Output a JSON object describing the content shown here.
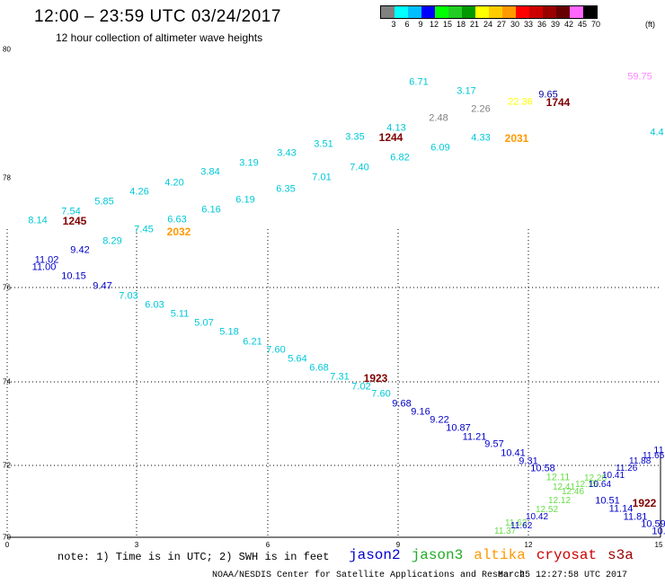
{
  "header": {
    "title": "12:00 – 23:59 UTC 03/24/2017",
    "subtitle": "12 hour collection of altimeter wave heights"
  },
  "colorbar": {
    "unit": "(ft)",
    "labels": [
      "3",
      "6",
      "9",
      "12",
      "15",
      "18",
      "21",
      "24",
      "27",
      "30",
      "33",
      "36",
      "39",
      "42",
      "45",
      "70"
    ],
    "colors": [
      "#808080",
      "#00ffff",
      "#00bfff",
      "#0000ff",
      "#00ff00",
      "#22cc22",
      "#009900",
      "#ffff00",
      "#ffcc00",
      "#ff9900",
      "#ff0000",
      "#cc0000",
      "#990000",
      "#660000",
      "#ff66ff",
      "#000000"
    ]
  },
  "axes": {
    "y_ticks": [
      "80",
      "78",
      "76",
      "74",
      "72",
      "70"
    ],
    "x_ticks": [
      "0",
      "3",
      "6",
      "9",
      "12",
      "15"
    ]
  },
  "footer": {
    "note": "note:  1) Time is in UTC;  2) SWH is in feet",
    "satellites": [
      {
        "name": "jason2",
        "color": "#0000cc"
      },
      {
        "name": "jason3",
        "color": "#22aa22"
      },
      {
        "name": "altika",
        "color": "#ff9900"
      },
      {
        "name": "cryosat",
        "color": "#cc0000"
      },
      {
        "name": "s3a",
        "color": "#990000"
      }
    ],
    "credit": "NOAA/NESDIS Center for Satellite Applications and Research",
    "timestamp": "Mar 25 12:27:58 UTC 2017"
  },
  "pass_labels": [
    {
      "text": "1245",
      "color": "#800000"
    },
    {
      "text": "2032",
      "color": "#ff9900"
    },
    {
      "text": "1244",
      "color": "#800000"
    },
    {
      "text": "2031",
      "color": "#ff9900"
    },
    {
      "text": "1744",
      "color": "#800000"
    },
    {
      "text": "1923",
      "color": "#800000"
    },
    {
      "text": "1922",
      "color": "#800000"
    }
  ],
  "wave_labels": [
    {
      "text": "6.71",
      "color": "#00c8d8"
    },
    {
      "text": "3.17",
      "color": "#00c8d8"
    },
    {
      "text": "9.65",
      "color": "#0000a0"
    },
    {
      "text": "59.75",
      "color": "#ff88ff"
    },
    {
      "text": "2.48",
      "color": "#808080"
    },
    {
      "text": "2.26",
      "color": "#808080"
    },
    {
      "text": "22.36",
      "color": "#ffff00"
    },
    {
      "text": "4.13",
      "color": "#00c8d8"
    },
    {
      "text": "3.35",
      "color": "#00c8d8"
    },
    {
      "text": "3.51",
      "color": "#00c8d8"
    },
    {
      "text": "6.09",
      "color": "#00c8d8"
    },
    {
      "text": "4.33",
      "color": "#00c8d8"
    },
    {
      "text": "4.4",
      "color": "#00c8d8"
    },
    {
      "text": "3.43",
      "color": "#00c8d8"
    },
    {
      "text": "6.82",
      "color": "#00c8d8"
    },
    {
      "text": "7.40",
      "color": "#00c8d8"
    },
    {
      "text": "3.19",
      "color": "#00c8d8"
    },
    {
      "text": "7.01",
      "color": "#00c8d8"
    },
    {
      "text": "3.84",
      "color": "#00c8d8"
    },
    {
      "text": "4.20",
      "color": "#00c8d8"
    },
    {
      "text": "6.35",
      "color": "#00c8d8"
    },
    {
      "text": "4.26",
      "color": "#00c8d8"
    },
    {
      "text": "6.19",
      "color": "#00c8d8"
    },
    {
      "text": "6.16",
      "color": "#00c8d8"
    },
    {
      "text": "5.85",
      "color": "#00c8d8"
    },
    {
      "text": "7.54",
      "color": "#00c8d8"
    },
    {
      "text": "6.63",
      "color": "#00c8d8"
    },
    {
      "text": "8.14",
      "color": "#00c8d8"
    },
    {
      "text": "7.45",
      "color": "#00c8d8"
    },
    {
      "text": "8.29",
      "color": "#00c8d8"
    },
    {
      "text": "9.42",
      "color": "#0000c8"
    },
    {
      "text": "11.02",
      "color": "#0000c8"
    },
    {
      "text": "11.00",
      "color": "#0000c8"
    },
    {
      "text": "10.15",
      "color": "#0000c8"
    },
    {
      "text": "9.47",
      "color": "#0000c8"
    },
    {
      "text": "7.03",
      "color": "#00c8d8"
    },
    {
      "text": "6.03",
      "color": "#00c8d8"
    },
    {
      "text": "5.11",
      "color": "#00c8d8"
    },
    {
      "text": "5.07",
      "color": "#00c8d8"
    },
    {
      "text": "5.18",
      "color": "#00c8d8"
    },
    {
      "text": "6.21",
      "color": "#00c8d8"
    },
    {
      "text": "7.60",
      "color": "#00c8d8"
    },
    {
      "text": "5.64",
      "color": "#00c8d8"
    },
    {
      "text": "6.68",
      "color": "#00c8d8"
    },
    {
      "text": "7.31",
      "color": "#00c8d8"
    },
    {
      "text": "7.02",
      "color": "#00c8d8"
    },
    {
      "text": "7.60",
      "color": "#00c8d8"
    },
    {
      "text": "9.68",
      "color": "#0000c8"
    },
    {
      "text": "9.16",
      "color": "#0000c8"
    },
    {
      "text": "9.22",
      "color": "#0000c8"
    },
    {
      "text": "10.87",
      "color": "#0000c8"
    },
    {
      "text": "11.21",
      "color": "#0000c8"
    },
    {
      "text": "9.57",
      "color": "#0000c8"
    },
    {
      "text": "10.41",
      "color": "#0000c8"
    },
    {
      "text": "9.31",
      "color": "#0000c8"
    },
    {
      "text": "10.58",
      "color": "#0000c8"
    },
    {
      "text": "12.11",
      "color": "#66dd44"
    },
    {
      "text": "10.51",
      "color": "#0000c8"
    },
    {
      "text": "11.14",
      "color": "#0000c8"
    },
    {
      "text": "11.81",
      "color": "#0000c8"
    },
    {
      "text": "10.59",
      "color": "#0000c8"
    },
    {
      "text": "10.",
      "color": "#0000c8"
    },
    {
      "text": "11",
      "color": "#0000c8"
    }
  ]
}
